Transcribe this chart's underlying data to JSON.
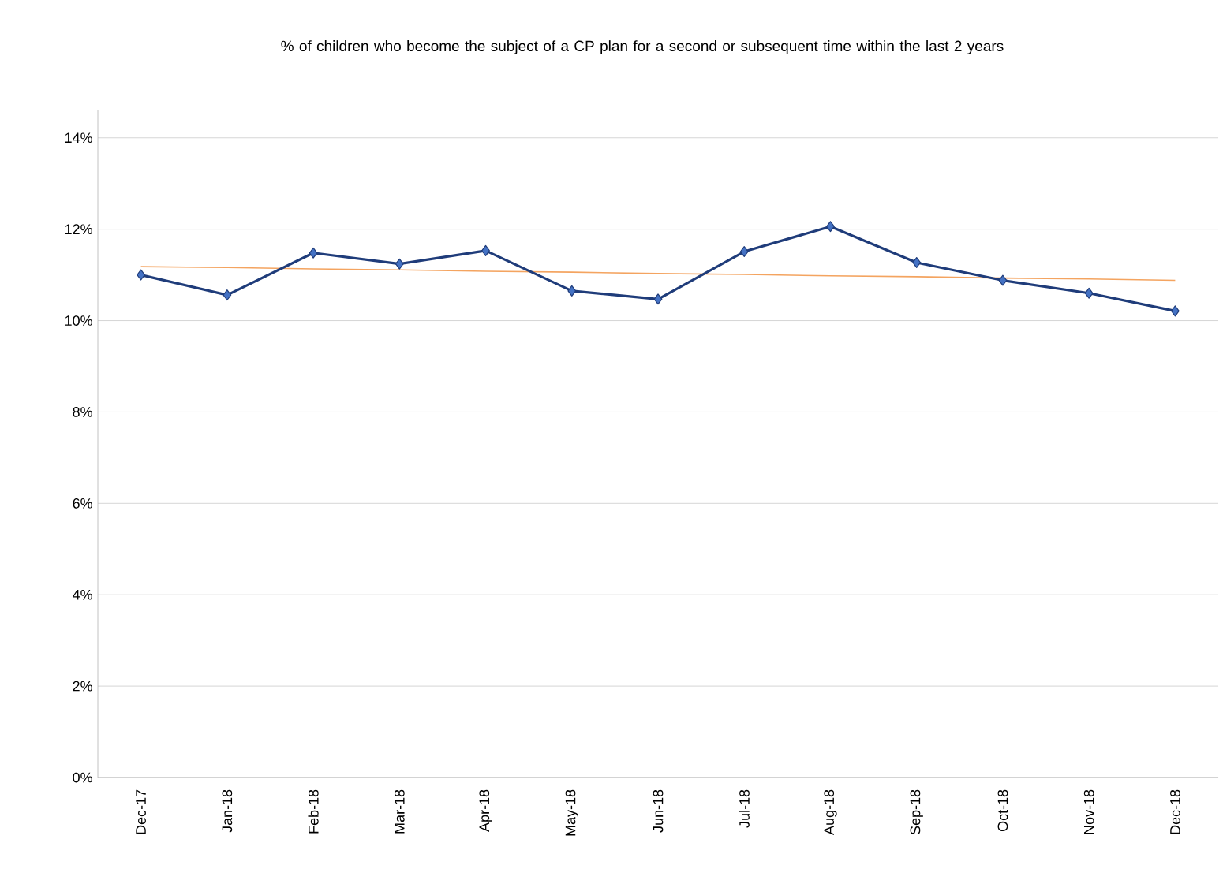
{
  "chart_data": {
    "type": "line",
    "title": "% of children who become the subject of a CP plan for a second or subsequent time within the last 2 years",
    "categories": [
      "Dec-17",
      "Jan-18",
      "Feb-18",
      "Mar-18",
      "Apr-18",
      "May-18",
      "Jun-18",
      "Jul-18",
      "Aug-18",
      "Sep-18",
      "Oct-18",
      "Nov-18",
      "Dec-18"
    ],
    "series": [
      {
        "color": "#1f3c7a",
        "marker": "diamond",
        "values": [
          11.0,
          10.56,
          11.48,
          11.24,
          11.53,
          10.65,
          10.47,
          11.51,
          12.06,
          11.27,
          10.88,
          10.6,
          10.21
        ]
      },
      {
        "color": "#f4a460",
        "marker": "none",
        "values": [
          11.18,
          11.16,
          11.13,
          11.11,
          11.08,
          11.06,
          11.03,
          11.01,
          10.98,
          10.96,
          10.93,
          10.91,
          10.88
        ]
      }
    ],
    "ylim": [
      0,
      14.6
    ],
    "yticks": [
      {
        "value": 0,
        "label": "0%"
      },
      {
        "value": 2,
        "label": "2%"
      },
      {
        "value": 4,
        "label": "4%"
      },
      {
        "value": 6,
        "label": "6%"
      },
      {
        "value": 8,
        "label": "8%"
      },
      {
        "value": 10,
        "label": "10%"
      },
      {
        "value": 12,
        "label": "12%"
      },
      {
        "value": 14,
        "label": "14%"
      }
    ],
    "grid": "y"
  }
}
